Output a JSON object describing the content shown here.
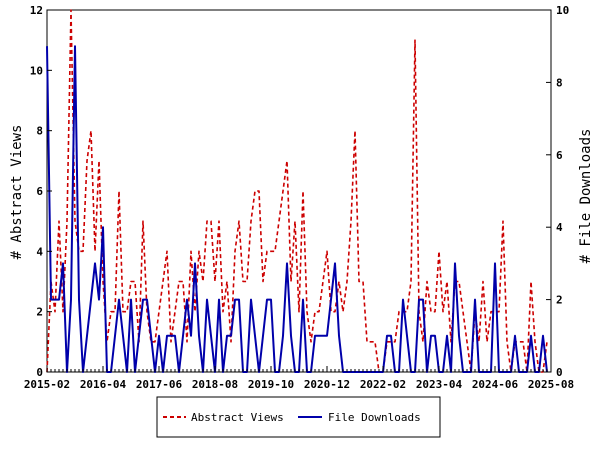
{
  "chart_data": {
    "type": "line",
    "ylabel": "# Abstract Views",
    "y2label": "# File Downloads",
    "ylim": [
      0,
      12
    ],
    "y2lim": [
      0,
      10
    ],
    "yticks": [
      0,
      2,
      4,
      6,
      8,
      10,
      12
    ],
    "y2ticks": [
      0,
      2,
      4,
      6,
      8,
      10
    ],
    "xlim": [
      "2015-02",
      "2025-08"
    ],
    "xticks": [
      "2015-02",
      "2016-04",
      "2017-06",
      "2018-08",
      "2019-10",
      "2020-12",
      "2022-02",
      "2023-04",
      "2024-06",
      "2025-08"
    ],
    "legend_position": "bottom-center",
    "grid": false,
    "series": [
      {
        "name": "Abstract Views",
        "axis": "left",
        "color": "#cc0000",
        "style": "dashed",
        "x": [
          "2015-02",
          "2015-03",
          "2015-04",
          "2015-05",
          "2015-06",
          "2015-07",
          "2015-08",
          "2015-09",
          "2015-10",
          "2015-11",
          "2015-12",
          "2016-01",
          "2016-02",
          "2016-03",
          "2016-04",
          "2016-05",
          "2016-06",
          "2016-07",
          "2016-08",
          "2016-09",
          "2016-10",
          "2016-11",
          "2016-12",
          "2017-01",
          "2017-02",
          "2017-03",
          "2017-04",
          "2017-05",
          "2017-06",
          "2017-07",
          "2017-08",
          "2017-09",
          "2017-10",
          "2017-11",
          "2017-12",
          "2018-01",
          "2018-02",
          "2018-03",
          "2018-04",
          "2018-05",
          "2018-06",
          "2018-07",
          "2018-08",
          "2018-09",
          "2018-10",
          "2018-11",
          "2018-12",
          "2019-01",
          "2019-02",
          "2019-03",
          "2019-04",
          "2019-05",
          "2019-06",
          "2019-07",
          "2019-08",
          "2019-09",
          "2019-10",
          "2019-11",
          "2019-12",
          "2020-01",
          "2020-02",
          "2020-03",
          "2020-04",
          "2020-05",
          "2020-06",
          "2020-07",
          "2020-08",
          "2020-09",
          "2020-10",
          "2020-11",
          "2020-12",
          "2021-01",
          "2021-02",
          "2021-03",
          "2021-04",
          "2021-05",
          "2021-06",
          "2021-07",
          "2021-08",
          "2021-09",
          "2021-10",
          "2021-11",
          "2021-12",
          "2022-01",
          "2022-02",
          "2022-03",
          "2022-04",
          "2022-05",
          "2022-06",
          "2022-07",
          "2022-08",
          "2022-09",
          "2022-10",
          "2022-11",
          "2022-12",
          "2023-01",
          "2023-02",
          "2023-03",
          "2023-04",
          "2023-05",
          "2023-06",
          "2023-07",
          "2023-08",
          "2023-09",
          "2023-10",
          "2023-11",
          "2023-12",
          "2024-01",
          "2024-02",
          "2024-03",
          "2024-04",
          "2024-05",
          "2024-06",
          "2024-07",
          "2024-08",
          "2024-09",
          "2024-10",
          "2024-11",
          "2024-12",
          "2025-01",
          "2025-02",
          "2025-03",
          "2025-04",
          "2025-05",
          "2025-06",
          "2025-07"
        ],
        "values": [
          0,
          3,
          2,
          5,
          2,
          5,
          12,
          5,
          4,
          4,
          7,
          8,
          4,
          7,
          3,
          1,
          2,
          2,
          6,
          2,
          2,
          3,
          3,
          1,
          5,
          2,
          1,
          1,
          2,
          3,
          4,
          1,
          2,
          3,
          3,
          1,
          4,
          2,
          4,
          3,
          5,
          5,
          3,
          5,
          2,
          3,
          1,
          4,
          5,
          3,
          3,
          5,
          6,
          6,
          3,
          4,
          4,
          4,
          5,
          6,
          7,
          3,
          5,
          2,
          6,
          2,
          1,
          2,
          2,
          3,
          4,
          2,
          2,
          3,
          2,
          3,
          5,
          8,
          3,
          3,
          1,
          1,
          1,
          0,
          0,
          1,
          1,
          1,
          2,
          2,
          2,
          3,
          11,
          2,
          1,
          3,
          2,
          2,
          4,
          2,
          3,
          1,
          3,
          3,
          2,
          1,
          0,
          2,
          1,
          3,
          1,
          2,
          2,
          2,
          5,
          1,
          0,
          1,
          1,
          1,
          0,
          3,
          1,
          0,
          0,
          1
        ],
        "y_units": "abstract views"
      },
      {
        "name": "File Downloads",
        "axis": "right",
        "color": "#0000aa",
        "style": "solid",
        "x": [
          "2015-02",
          "2015-03",
          "2015-04",
          "2015-05",
          "2015-06",
          "2015-07",
          "2015-08",
          "2015-09",
          "2015-10",
          "2015-11",
          "2015-12",
          "2016-01",
          "2016-02",
          "2016-03",
          "2016-04",
          "2016-05",
          "2016-06",
          "2016-07",
          "2016-08",
          "2016-09",
          "2016-10",
          "2016-11",
          "2016-12",
          "2017-01",
          "2017-02",
          "2017-03",
          "2017-04",
          "2017-05",
          "2017-06",
          "2017-07",
          "2017-08",
          "2017-09",
          "2017-10",
          "2017-11",
          "2017-12",
          "2018-01",
          "2018-02",
          "2018-03",
          "2018-04",
          "2018-05",
          "2018-06",
          "2018-07",
          "2018-08",
          "2018-09",
          "2018-10",
          "2018-11",
          "2018-12",
          "2019-01",
          "2019-02",
          "2019-03",
          "2019-04",
          "2019-05",
          "2019-06",
          "2019-07",
          "2019-08",
          "2019-09",
          "2019-10",
          "2019-11",
          "2019-12",
          "2020-01",
          "2020-02",
          "2020-03",
          "2020-04",
          "2020-05",
          "2020-06",
          "2020-07",
          "2020-08",
          "2020-09",
          "2020-10",
          "2020-11",
          "2020-12",
          "2021-01",
          "2021-02",
          "2021-03",
          "2021-04",
          "2021-05",
          "2021-06",
          "2021-07",
          "2021-08",
          "2021-09",
          "2021-10",
          "2021-11",
          "2021-12",
          "2022-01",
          "2022-02",
          "2022-03",
          "2022-04",
          "2022-05",
          "2022-06",
          "2022-07",
          "2022-08",
          "2022-09",
          "2022-10",
          "2022-11",
          "2022-12",
          "2023-01",
          "2023-02",
          "2023-03",
          "2023-04",
          "2023-05",
          "2023-06",
          "2023-07",
          "2023-08",
          "2023-09",
          "2023-10",
          "2023-11",
          "2023-12",
          "2024-01",
          "2024-02",
          "2024-03",
          "2024-04",
          "2024-05",
          "2024-06",
          "2024-07",
          "2024-08",
          "2024-09",
          "2024-10",
          "2024-11",
          "2024-12",
          "2025-01",
          "2025-02",
          "2025-03",
          "2025-04",
          "2025-05",
          "2025-06",
          "2025-07"
        ],
        "values": [
          9,
          2,
          2,
          2,
          3,
          0,
          2,
          9,
          2,
          0,
          1,
          2,
          3,
          2,
          4,
          0,
          0,
          1,
          2,
          1,
          0,
          2,
          0,
          1,
          2,
          2,
          1,
          0,
          1,
          0,
          1,
          1,
          1,
          0,
          1,
          2,
          1,
          3,
          1,
          0,
          2,
          1,
          0,
          2,
          0,
          1,
          1,
          2,
          2,
          0,
          0,
          2,
          1,
          0,
          1,
          2,
          2,
          0,
          0,
          1,
          3,
          1,
          0,
          0,
          2,
          0,
          0,
          1,
          1,
          1,
          1,
          2,
          3,
          1,
          0,
          0,
          0,
          0,
          0,
          0,
          0,
          0,
          0,
          0,
          0,
          1,
          1,
          0,
          0,
          2,
          1,
          0,
          0,
          2,
          2,
          0,
          1,
          1,
          0,
          0,
          1,
          0,
          3,
          1,
          0,
          0,
          0,
          2,
          0,
          0,
          0,
          0,
          3,
          0,
          0,
          0,
          0,
          1,
          0,
          0,
          0,
          1,
          0,
          0,
          1,
          0
        ],
        "y_units": "file downloads"
      }
    ]
  }
}
